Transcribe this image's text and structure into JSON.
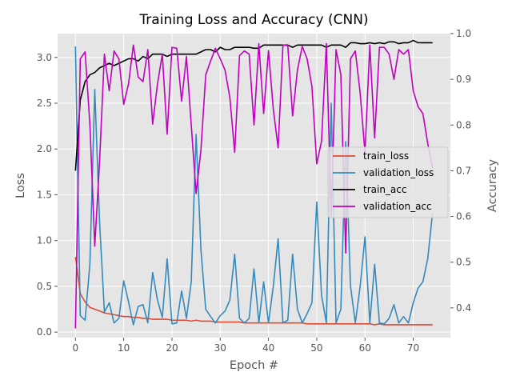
{
  "chart_data": {
    "type": "line",
    "title": "Training Loss and Accuracy (CNN)",
    "xlabel": "Epoch #",
    "ylabel": "Loss",
    "y2label": "Accuracy",
    "xlim": [
      -3.7,
      77.7
    ],
    "ylim": [
      -0.06,
      3.26
    ],
    "y2lim": [
      0.335,
      1.0
    ],
    "xticks": [
      "0",
      "10",
      "20",
      "30",
      "40",
      "50",
      "60",
      "70"
    ],
    "yticks": [
      "0.0",
      "0.5",
      "1.0",
      "1.5",
      "2.0",
      "2.5",
      "3.0"
    ],
    "y2ticks": [
      "0.4",
      "0.5",
      "0.6",
      "0.7",
      "0.8",
      "0.9",
      "1.0"
    ],
    "grid": true,
    "legend": "center-right",
    "x": [
      0,
      1,
      2,
      3,
      4,
      5,
      6,
      7,
      8,
      9,
      10,
      11,
      12,
      13,
      14,
      15,
      16,
      17,
      18,
      19,
      20,
      21,
      22,
      23,
      24,
      25,
      26,
      27,
      28,
      29,
      30,
      31,
      32,
      33,
      34,
      35,
      36,
      37,
      38,
      39,
      40,
      41,
      42,
      43,
      44,
      45,
      46,
      47,
      48,
      49,
      50,
      51,
      52,
      53,
      54,
      55,
      56,
      57,
      58,
      59,
      60,
      61,
      62,
      63,
      64,
      65,
      66,
      67,
      68,
      69,
      70,
      71,
      72,
      73,
      74
    ],
    "series": [
      {
        "name": "train_loss",
        "axis": "left",
        "color": "#e24a33",
        "values": [
          0.82,
          0.42,
          0.33,
          0.27,
          0.25,
          0.23,
          0.21,
          0.2,
          0.19,
          0.18,
          0.17,
          0.17,
          0.16,
          0.16,
          0.15,
          0.15,
          0.14,
          0.14,
          0.14,
          0.14,
          0.13,
          0.13,
          0.13,
          0.13,
          0.12,
          0.13,
          0.12,
          0.12,
          0.12,
          0.11,
          0.11,
          0.11,
          0.11,
          0.11,
          0.11,
          0.1,
          0.1,
          0.1,
          0.1,
          0.1,
          0.1,
          0.1,
          0.1,
          0.1,
          0.1,
          0.1,
          0.1,
          0.1,
          0.09,
          0.09,
          0.09,
          0.09,
          0.09,
          0.09,
          0.09,
          0.09,
          0.09,
          0.09,
          0.09,
          0.09,
          0.09,
          0.09,
          0.08,
          0.09,
          0.08,
          0.08,
          0.08,
          0.08,
          0.08,
          0.08,
          0.08,
          0.08,
          0.08,
          0.08,
          0.08
        ]
      },
      {
        "name": "validation_loss",
        "axis": "left",
        "color": "#348abd",
        "values": [
          3.12,
          0.18,
          0.13,
          0.75,
          2.65,
          1.2,
          0.22,
          0.32,
          0.1,
          0.15,
          0.56,
          0.33,
          0.08,
          0.28,
          0.3,
          0.1,
          0.65,
          0.35,
          0.16,
          0.8,
          0.09,
          0.1,
          0.45,
          0.15,
          0.55,
          2.16,
          0.9,
          0.25,
          0.17,
          0.1,
          0.18,
          0.23,
          0.35,
          0.85,
          0.15,
          0.1,
          0.15,
          0.69,
          0.1,
          0.55,
          0.1,
          0.5,
          1.02,
          0.1,
          0.13,
          0.85,
          0.25,
          0.1,
          0.2,
          0.32,
          1.42,
          0.4,
          0.1,
          2.5,
          0.1,
          0.25,
          2.08,
          0.5,
          0.1,
          0.5,
          1.04,
          0.1,
          0.74,
          0.1,
          0.09,
          0.15,
          0.3,
          0.1,
          0.17,
          0.1,
          0.32,
          0.48,
          0.55,
          0.8,
          1.3
        ]
      },
      {
        "name": "train_acc",
        "axis": "right",
        "color": "#000000",
        "values": [
          0.7,
          0.855,
          0.895,
          0.91,
          0.915,
          0.925,
          0.93,
          0.935,
          0.93,
          0.935,
          0.94,
          0.945,
          0.945,
          0.94,
          0.95,
          0.945,
          0.955,
          0.955,
          0.955,
          0.95,
          0.955,
          0.955,
          0.955,
          0.955,
          0.955,
          0.955,
          0.96,
          0.965,
          0.965,
          0.96,
          0.97,
          0.965,
          0.965,
          0.97,
          0.97,
          0.97,
          0.97,
          0.968,
          0.968,
          0.975,
          0.975,
          0.975,
          0.975,
          0.975,
          0.975,
          0.97,
          0.975,
          0.975,
          0.975,
          0.975,
          0.975,
          0.975,
          0.97,
          0.975,
          0.975,
          0.975,
          0.97,
          0.98,
          0.98,
          0.978,
          0.978,
          0.98,
          0.978,
          0.98,
          0.978,
          0.982,
          0.982,
          0.978,
          0.98,
          0.98,
          0.985,
          0.98,
          0.98,
          0.98,
          0.98
        ]
      },
      {
        "name": "validation_acc",
        "axis": "right",
        "color": "#bf00bf",
        "values": [
          0.355,
          0.945,
          0.96,
          0.8,
          0.535,
          0.72,
          0.955,
          0.875,
          0.962,
          0.945,
          0.845,
          0.89,
          0.975,
          0.905,
          0.895,
          0.965,
          0.802,
          0.89,
          0.955,
          0.78,
          0.97,
          0.968,
          0.852,
          0.95,
          0.8,
          0.65,
          0.745,
          0.91,
          0.94,
          0.968,
          0.945,
          0.92,
          0.86,
          0.74,
          0.952,
          0.962,
          0.955,
          0.8,
          0.978,
          0.825,
          0.963,
          0.835,
          0.75,
          0.975,
          0.974,
          0.82,
          0.92,
          0.972,
          0.945,
          0.885,
          0.715,
          0.765,
          0.978,
          0.6,
          0.965,
          0.91,
          0.52,
          0.945,
          0.962,
          0.87,
          0.74,
          0.975,
          0.772,
          0.97,
          0.97,
          0.955,
          0.9,
          0.965,
          0.955,
          0.965,
          0.875,
          0.84,
          0.825,
          0.76,
          0.705
        ]
      }
    ]
  }
}
